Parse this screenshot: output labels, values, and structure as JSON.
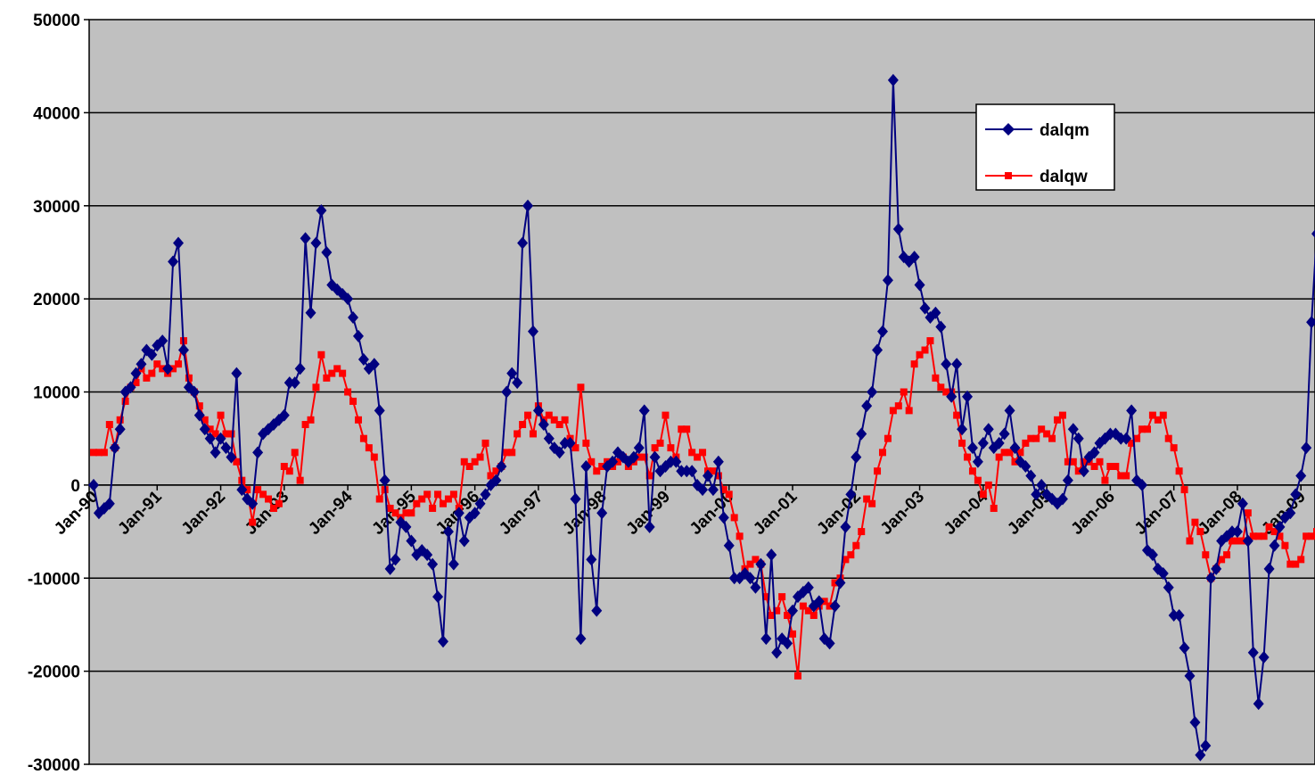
{
  "chart_data": {
    "type": "line",
    "title": "",
    "xlabel": "",
    "ylabel": "",
    "ylim": [
      -30000,
      50000
    ],
    "yticks": [
      -30000,
      -20000,
      -10000,
      0,
      10000,
      20000,
      30000,
      40000,
      50000
    ],
    "ytick_labels": [
      "-30000",
      "-20000",
      "-10000",
      "0",
      "10000",
      "20000",
      "30000",
      "40000",
      "50000"
    ],
    "x_start": "Jan-90",
    "x_end": "Feb-09",
    "xtick_labels": [
      "Jan-90",
      "Jan-91",
      "Jan-92",
      "Jan-93",
      "Jan-94",
      "Jan-95",
      "Jan-96",
      "Jan-97",
      "Jan-98",
      "Jan-99",
      "Jan-00",
      "Jan-01",
      "Jan-02",
      "Jan-03",
      "Jan-04",
      "Jan-05",
      "Jan-06",
      "Jan-07",
      "Jan-08",
      "Jan-09"
    ],
    "grid": true,
    "legend": "top-right",
    "background": "#c0c0c0",
    "series": [
      {
        "name": "dalqm",
        "color": "#000080",
        "marker": "diamond",
        "values": [
          0,
          -3000,
          -2500,
          -2000,
          4000,
          6000,
          10000,
          10500,
          12000,
          13000,
          14500,
          14000,
          15000,
          15500,
          12500,
          24000,
          26000,
          14500,
          10500,
          10000,
          7500,
          6000,
          5000,
          3500,
          5000,
          4000,
          3000,
          12000,
          -500,
          -1500,
          -2000,
          3500,
          5500,
          6000,
          6500,
          7000,
          7500,
          11000,
          11000,
          12500,
          26500,
          18500,
          26000,
          29500,
          25000,
          21500,
          21000,
          20500,
          20000,
          18000,
          16000,
          13500,
          12500,
          13000,
          8000,
          500,
          -9000,
          -8000,
          -4000,
          -4500,
          -6000,
          -7500,
          -7000,
          -7500,
          -8500,
          -12000,
          -16800,
          -5000,
          -8500,
          -3000,
          -6000,
          -3500,
          -3000,
          -2000,
          -1000,
          0,
          500,
          2000,
          10000,
          12000,
          11000,
          26000,
          30000,
          16500,
          8000,
          6500,
          5000,
          4000,
          3500,
          4500,
          4500,
          -1500,
          -16500,
          2000,
          -8000,
          -13500,
          -3000,
          2000,
          2500,
          3500,
          3000,
          2500,
          3000,
          4000,
          8000,
          -4500,
          3000,
          1500,
          2000,
          2500,
          2500,
          1500,
          1500,
          1500,
          0,
          -500,
          1000,
          -500,
          2500,
          -3500,
          -6500,
          -10000,
          -10000,
          -9500,
          -10000,
          -11000,
          -8500,
          -16500,
          -7500,
          -18000,
          -16500,
          -17000,
          -13500,
          -12000,
          -11500,
          -11000,
          -13000,
          -12500,
          -16500,
          -17000,
          -13000,
          -10500,
          -4500,
          -1000,
          3000,
          5500,
          8500,
          10000,
          14500,
          16500,
          22000,
          43500,
          27500,
          24500,
          24000,
          24500,
          21500,
          19000,
          18000,
          18500,
          17000,
          13000,
          9500,
          13000,
          6000,
          9500,
          4000,
          2500,
          4500,
          6000,
          4000,
          4500,
          5500,
          8000,
          4000,
          2500,
          2000,
          1000,
          -1000,
          0,
          -1000,
          -1500,
          -2000,
          -1500,
          500,
          6000,
          5000,
          1500,
          3000,
          3500,
          4500,
          5000,
          5500,
          5500,
          5000,
          5000,
          8000,
          500,
          0,
          -7000,
          -7500,
          -9000,
          -9500,
          -11000,
          -14000,
          -14000,
          -17500,
          -20500,
          -25500,
          -29000,
          -28000,
          -10000,
          -9000,
          -6000,
          -5500,
          -5000,
          -5000,
          -2000,
          -6000,
          -18000,
          -23500,
          -18500,
          -9000,
          -6500,
          -4500,
          -3500,
          -3000,
          -1000,
          1000,
          4000,
          17500,
          27000
        ]
      },
      {
        "name": "dalqw",
        "color": "#ff0000",
        "marker": "square",
        "values": [
          3500,
          3500,
          3500,
          6500,
          4000,
          7000,
          9000,
          10500,
          11000,
          12500,
          11500,
          12000,
          13000,
          12500,
          12000,
          12500,
          13000,
          15500,
          11500,
          10000,
          8500,
          7000,
          6000,
          5500,
          7500,
          5500,
          5500,
          2500,
          500,
          -500,
          -4000,
          -500,
          -1000,
          -1500,
          -2500,
          -2000,
          2000,
          1500,
          3500,
          500,
          6500,
          7000,
          10500,
          14000,
          11500,
          12000,
          12500,
          12000,
          10000,
          9000,
          7000,
          5000,
          4000,
          3000,
          -1500,
          -500,
          -2500,
          -3000,
          -3500,
          -3000,
          -3000,
          -2000,
          -1500,
          -1000,
          -2500,
          -1000,
          -2000,
          -1500,
          -1000,
          -2500,
          2500,
          2000,
          2500,
          3000,
          4500,
          1000,
          1500,
          2000,
          3500,
          3500,
          5500,
          6500,
          7500,
          5500,
          8500,
          7000,
          7500,
          7000,
          6500,
          7000,
          5000,
          4000,
          10500,
          4500,
          2500,
          1500,
          2000,
          2500,
          2000,
          2500,
          3000,
          2000,
          2500,
          3000,
          3000,
          1000,
          4000,
          4500,
          7500,
          4000,
          3000,
          6000,
          6000,
          3500,
          3000,
          3500,
          1500,
          1500,
          1000,
          -500,
          -1000,
          -3500,
          -5500,
          -9000,
          -8500,
          -8000,
          -8500,
          -12000,
          -14000,
          -13500,
          -12000,
          -14000,
          -16000,
          -20500,
          -13000,
          -13500,
          -14000,
          -13000,
          -12500,
          -13000,
          -10500,
          -10000,
          -8000,
          -7500,
          -6500,
          -5000,
          -1500,
          -2000,
          1500,
          3500,
          5000,
          8000,
          8500,
          10000,
          8000,
          13000,
          14000,
          14500,
          15500,
          11500,
          10500,
          10000,
          10000,
          7500,
          4500,
          3000,
          1500,
          500,
          -1000,
          0,
          -2500,
          3000,
          3500,
          3500,
          2500,
          3500,
          4500,
          5000,
          5000,
          6000,
          5500,
          5000,
          7000,
          7500,
          2500,
          2500,
          1500,
          2500,
          2500,
          2000,
          2500,
          500,
          2000,
          2000,
          1000,
          1000,
          4500,
          5000,
          6000,
          6000,
          7500,
          7000,
          7500,
          5000,
          4000,
          1500,
          -500,
          -6000,
          -4000,
          -5000,
          -7500,
          -10000,
          -9000,
          -8000,
          -7500,
          -6000,
          -6000,
          -6000,
          -3000,
          -5500,
          -5500,
          -5500,
          -4500,
          -5000,
          -5500,
          -6500,
          -8500,
          -8500,
          -8000,
          -5500,
          -5500,
          -5000,
          -3500,
          -4000,
          -2000,
          -1500,
          2500,
          4500,
          6000
        ]
      }
    ]
  }
}
